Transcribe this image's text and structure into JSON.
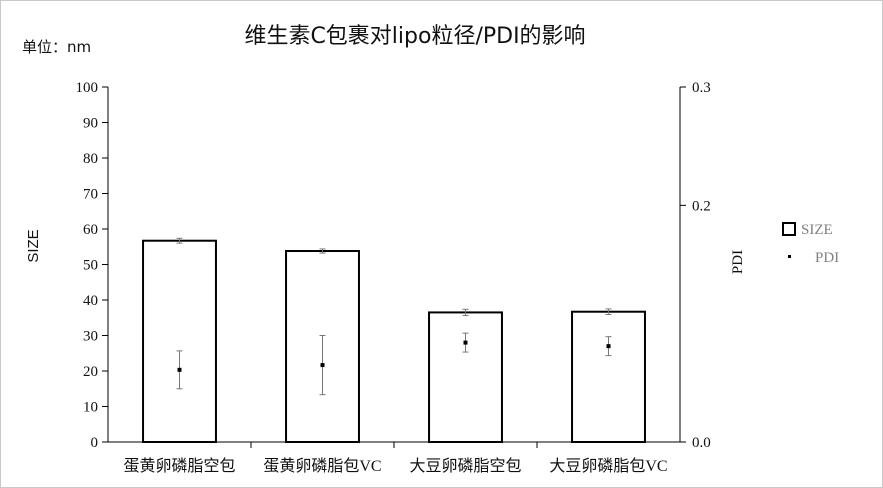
{
  "title": "维生素C包裹对lipo粒径/PDI的影响",
  "unit_label": "单位：nm",
  "chart_data": {
    "type": "bar",
    "categories": [
      "蛋黄卵磷脂空包",
      "蛋黄卵磷脂包VC",
      "大豆卵磷脂空包",
      "大豆卵磷脂包VC"
    ],
    "series": [
      {
        "name": "SIZE",
        "axis": "left",
        "kind": "bar",
        "values": [
          56.7,
          53.8,
          36.5,
          36.7
        ],
        "error": [
          0.4,
          0.3,
          0.6,
          0.5
        ]
      },
      {
        "name": "PDI",
        "axis": "right",
        "kind": "point",
        "values": [
          0.061,
          0.065,
          0.084,
          0.081
        ],
        "error": [
          0.016,
          0.025,
          0.008,
          0.008
        ]
      }
    ],
    "ylabel": "SIZE",
    "y2label": "PDI",
    "ylim": [
      0,
      100
    ],
    "y2lim": [
      0.0,
      0.3
    ],
    "yticks": [
      "0",
      "10",
      "20",
      "30",
      "40",
      "50",
      "60",
      "70",
      "80",
      "90",
      "100"
    ],
    "y2ticks": [
      "0.0",
      "0.2",
      "0.3"
    ],
    "y2tick_values": [
      0.0,
      0.2,
      0.3
    ],
    "grid": false,
    "legend_position": "right",
    "colors": {
      "bar_fill": "#ffffff",
      "bar_edge": "#000000",
      "point": "#000000",
      "error": "#777777",
      "legend_text": "#808080"
    }
  }
}
